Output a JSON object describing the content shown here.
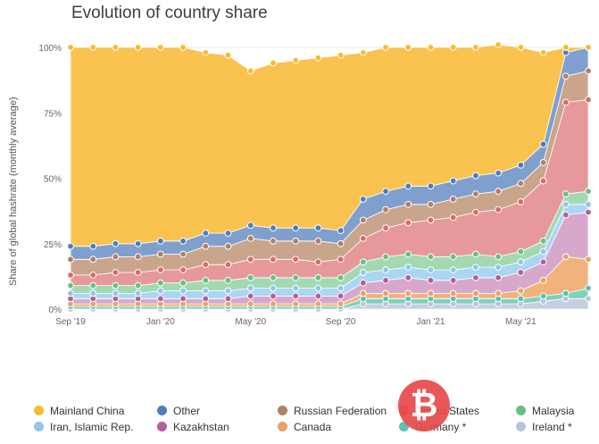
{
  "chart_data": {
    "type": "area",
    "stacked": true,
    "title": "Evolution of country share",
    "ylabel": "Share of global hashrate (monthly average)",
    "xlabel": "",
    "ylim": [
      0,
      100
    ],
    "yticks": [
      "0%",
      "25%",
      "50%",
      "75%",
      "100%"
    ],
    "xticks": [
      {
        "label": "Sep '19",
        "index": 0
      },
      {
        "label": "Jan '20",
        "index": 4
      },
      {
        "label": "May '20",
        "index": 8
      },
      {
        "label": "Sep '20",
        "index": 12
      },
      {
        "label": "Jan '21",
        "index": 16
      },
      {
        "label": "May '21",
        "index": 20
      }
    ],
    "x": [
      "Sep '19",
      "Oct '19",
      "Nov '19",
      "Dec '19",
      "Jan '20",
      "Feb '20",
      "Mar '20",
      "Apr '20",
      "May '20",
      "Jun '20",
      "Jul '20",
      "Aug '20",
      "Sep '20",
      "Oct '20",
      "Nov '20",
      "Dec '20",
      "Jan '21",
      "Feb '21",
      "Mar '21",
      "Apr '21",
      "May '21",
      "Jun '21",
      "Jul '21",
      "Aug '21"
    ],
    "series": [
      {
        "name": "Ireland *",
        "color": "#c4cfe0",
        "values": [
          0,
          0,
          0,
          0,
          0,
          0,
          0,
          0,
          0,
          0,
          0,
          0,
          0,
          2,
          2,
          2,
          2,
          2,
          2,
          2,
          2,
          3,
          4,
          4
        ]
      },
      {
        "name": "Germany *",
        "color": "#7ed0c0",
        "values": [
          1,
          1,
          1,
          1,
          1,
          1,
          1,
          1,
          1,
          1,
          1,
          1,
          1,
          2,
          2,
          2,
          2,
          2,
          2,
          2,
          2,
          2,
          2,
          4
        ]
      },
      {
        "name": "Canada",
        "color": "#f1b27c",
        "values": [
          1,
          1,
          1,
          1,
          1,
          1,
          1,
          1,
          1,
          1,
          1,
          1,
          1,
          2,
          2,
          2,
          2,
          2,
          2,
          2,
          3,
          6,
          14,
          11
        ]
      },
      {
        "name": "Kazakhstan",
        "color": "#d8a8cc",
        "values": [
          2,
          2,
          2,
          2,
          2,
          2,
          2,
          2,
          3,
          3,
          3,
          3,
          3,
          4,
          5,
          6,
          5,
          5,
          6,
          6,
          7,
          7,
          16,
          18
        ]
      },
      {
        "name": "Iran, Islamic Rep.",
        "color": "#a9d6f4",
        "values": [
          2,
          2,
          2,
          2,
          3,
          3,
          3,
          3,
          3,
          3,
          3,
          3,
          3,
          4,
          4,
          4,
          4,
          4,
          4,
          4,
          4,
          4,
          4,
          3
        ]
      },
      {
        "name": "Malaysia",
        "color": "#a3d9b1",
        "values": [
          3,
          3,
          3,
          3,
          3,
          3,
          4,
          4,
          4,
          4,
          4,
          4,
          4,
          4,
          5,
          5,
          5,
          5,
          5,
          4,
          4,
          4,
          4,
          5
        ]
      },
      {
        "name": "United States",
        "color": "#e6989a",
        "values": [
          4,
          4,
          5,
          5,
          5,
          5,
          6,
          6,
          7,
          7,
          7,
          6,
          7,
          9,
          11,
          12,
          14,
          15,
          16,
          18,
          19,
          23,
          35,
          35
        ]
      },
      {
        "name": "Russian Federation",
        "color": "#c9a58c",
        "values": [
          6,
          6,
          6,
          6,
          6,
          6,
          7,
          7,
          8,
          7,
          7,
          8,
          6,
          7,
          7,
          7,
          6,
          7,
          7,
          7,
          7,
          7,
          10,
          11
        ]
      },
      {
        "name": "Other",
        "color": "#7fa0ce",
        "values": [
          5,
          5,
          5,
          5,
          5,
          5,
          5,
          5,
          5,
          5,
          5,
          5,
          5,
          8,
          7,
          7,
          7,
          7,
          7,
          7,
          7,
          7,
          9,
          9
        ]
      },
      {
        "name": "Mainland China",
        "color": "#fac24e",
        "values": [
          76,
          76,
          75,
          75,
          74,
          74,
          69,
          68,
          59,
          63,
          64,
          65,
          67,
          56,
          55,
          53,
          53,
          51,
          49,
          49,
          45,
          35,
          2,
          0
        ]
      }
    ],
    "legend": [
      "Mainland China",
      "Other",
      "Russian Federation",
      "United States",
      "Malaysia",
      "Iran, Islamic Rep.",
      "Kazakhstan",
      "Canada",
      "Germany *",
      "Ireland *"
    ],
    "legend_position": "bottom"
  },
  "legend_colors": {
    "Mainland China": "#f6bd2f",
    "Other": "#4f7cbf",
    "Russian Federation": "#b08066",
    "United States": "#dc6a6a",
    "Malaysia": "#69bf82",
    "Iran, Islamic Rep.": "#92c6ea",
    "Kazakhstan": "#b45e9c",
    "Canada": "#e8a36a",
    "Germany *": "#5bc2ad",
    "Ireland *": "#b9c4d8"
  }
}
